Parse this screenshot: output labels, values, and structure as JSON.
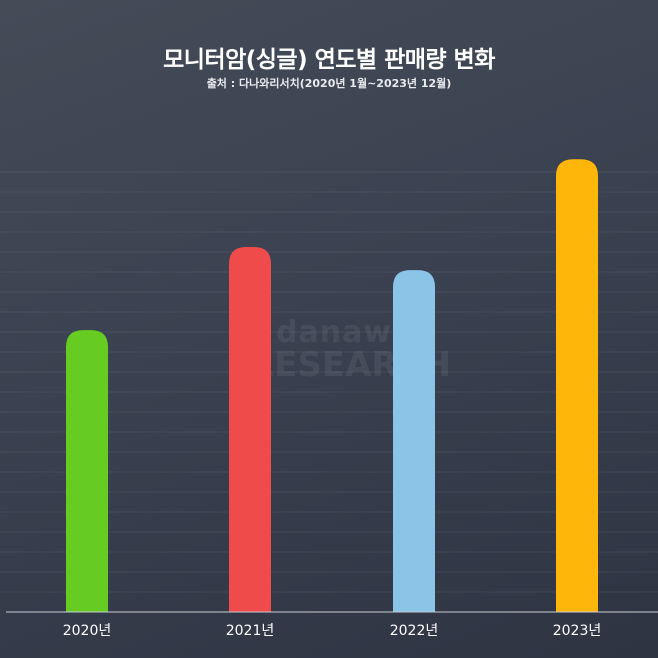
{
  "title": "모니터암(싱글) 연도별 판매량 변화",
  "subtitle": "출처 : 다나와리서치(2020년 1월~2023년 12월)",
  "watermark": {
    "line1": "danawa",
    "line2": "RESEARCH"
  },
  "chart_data": {
    "type": "bar",
    "title": "모니터암(싱글) 연도별 판매량 변화",
    "subtitle": "출처 : 다나와리서치(2020년 1월~2023년 12월)",
    "categories": [
      "2020년",
      "2021년",
      "2022년",
      "2023년"
    ],
    "values": [
      61,
      79,
      74,
      98
    ],
    "ylim": [
      0,
      100
    ],
    "grid": true,
    "legend": "none",
    "colors": [
      "#66cc22",
      "#f04b4b",
      "#8ac4e6",
      "#ffb60a"
    ]
  }
}
